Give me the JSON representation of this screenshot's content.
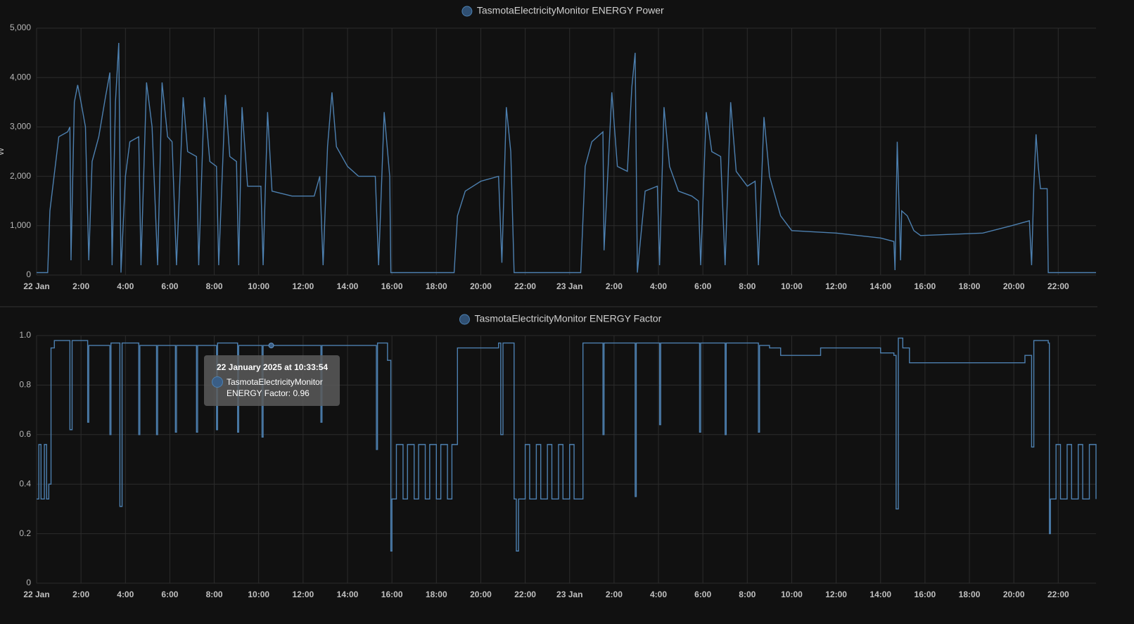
{
  "chart_data": [
    {
      "type": "line",
      "y_label": "W",
      "x": [
        0,
        0.5,
        0.6,
        1.0,
        1.4,
        1.5,
        1.55,
        1.7,
        1.85,
        2.0,
        2.2,
        2.35,
        2.5,
        2.8,
        3.1,
        3.3,
        3.4,
        3.55,
        3.7,
        3.8,
        4.0,
        4.2,
        4.6,
        4.7,
        4.95,
        5.2,
        5.45,
        5.65,
        5.9,
        6.1,
        6.3,
        6.6,
        6.8,
        7.2,
        7.3,
        7.55,
        7.8,
        8.1,
        8.2,
        8.5,
        8.7,
        9.0,
        9.1,
        9.25,
        9.5,
        10.1,
        10.2,
        10.4,
        10.6,
        11.5,
        12.5,
        12.75,
        12.9,
        13.1,
        13.3,
        13.5,
        14.0,
        14.5,
        15.25,
        15.4,
        15.65,
        15.9,
        15.95,
        18.8,
        18.95,
        19.3,
        20.0,
        20.8,
        20.95,
        21.15,
        21.35,
        21.5,
        24.5,
        24.7,
        25.0,
        25.5,
        25.55,
        25.9,
        26.15,
        26.6,
        26.8,
        26.95,
        27.05,
        27.4,
        27.95,
        28.05,
        28.25,
        28.5,
        28.9,
        29.5,
        29.8,
        29.9,
        30.15,
        30.4,
        30.8,
        31.0,
        31.25,
        31.5,
        32.0,
        32.35,
        32.5,
        32.75,
        33.0,
        33.5,
        34.0,
        36.0,
        38.0,
        38.6,
        38.65,
        38.75,
        38.9,
        38.95,
        39.2,
        39.5,
        39.8,
        42.6,
        43.9,
        44.7,
        44.8,
        44.9,
        45.0,
        45.1,
        45.2,
        45.5,
        45.55,
        47.7
      ],
      "series": [
        {
          "name": "TasmotaElectricityMonitor ENERGY Power",
          "color": "#4d80b0",
          "values": [
            50,
            50,
            1300,
            2800,
            2900,
            3000,
            300,
            3500,
            3850,
            3500,
            3000,
            300,
            2300,
            2800,
            3600,
            4100,
            200,
            3500,
            4700,
            50,
            2000,
            2700,
            2800,
            200,
            3900,
            3000,
            200,
            3900,
            2800,
            2700,
            200,
            3600,
            2500,
            2400,
            200,
            3600,
            2300,
            2200,
            200,
            3650,
            2400,
            2300,
            200,
            3400,
            1800,
            1800,
            200,
            3300,
            1700,
            1600,
            1600,
            2000,
            200,
            2600,
            3700,
            2600,
            2200,
            2000,
            2000,
            200,
            3300,
            2000,
            50,
            50,
            1200,
            1700,
            1900,
            2000,
            250,
            3400,
            2500,
            50,
            50,
            2200,
            2700,
            2900,
            500,
            3700,
            2200,
            2100,
            3800,
            4500,
            50,
            1700,
            1800,
            200,
            3400,
            2200,
            1700,
            1600,
            1500,
            200,
            3300,
            2500,
            2400,
            200,
            3500,
            2100,
            1800,
            1900,
            200,
            3200,
            2000,
            1200,
            900,
            850,
            750,
            680,
            100,
            2700,
            300,
            1300,
            1200,
            900,
            800,
            850,
            1000,
            1100,
            200,
            1800,
            2850,
            2200,
            1750,
            1750,
            50,
            50
          ]
        }
      ],
      "xlim": [
        0,
        47.7
      ],
      "xticks": [
        {
          "value": 0,
          "label": "22 Jan"
        },
        {
          "value": 2,
          "label": "2:00"
        },
        {
          "value": 4,
          "label": "4:00"
        },
        {
          "value": 6,
          "label": "6:00"
        },
        {
          "value": 8,
          "label": "8:00"
        },
        {
          "value": 10,
          "label": "10:00"
        },
        {
          "value": 12,
          "label": "12:00"
        },
        {
          "value": 14,
          "label": "14:00"
        },
        {
          "value": 16,
          "label": "16:00"
        },
        {
          "value": 18,
          "label": "18:00"
        },
        {
          "value": 20,
          "label": "20:00"
        },
        {
          "value": 22,
          "label": "22:00"
        },
        {
          "value": 24,
          "label": "23 Jan"
        },
        {
          "value": 26,
          "label": "2:00"
        },
        {
          "value": 28,
          "label": "4:00"
        },
        {
          "value": 30,
          "label": "6:00"
        },
        {
          "value": 32,
          "label": "8:00"
        },
        {
          "value": 34,
          "label": "10:00"
        },
        {
          "value": 36,
          "label": "12:00"
        },
        {
          "value": 38,
          "label": "14:00"
        },
        {
          "value": 40,
          "label": "16:00"
        },
        {
          "value": 42,
          "label": "18:00"
        },
        {
          "value": 44,
          "label": "20:00"
        },
        {
          "value": 46,
          "label": "22:00"
        }
      ],
      "ylim": [
        0,
        5000
      ],
      "yticks": [
        0,
        {
          "value": 1000,
          "label": "1,000"
        },
        {
          "value": 2000,
          "label": "2,000"
        },
        {
          "value": 3000,
          "label": "3,000"
        },
        {
          "value": 4000,
          "label": "4,000"
        },
        {
          "value": 5000,
          "label": "5,000"
        }
      ],
      "grid": true,
      "step": false
    },
    {
      "type": "line",
      "x": [
        0,
        0.1,
        0.2,
        0.35,
        0.45,
        0.55,
        0.65,
        0.8,
        1.5,
        1.6,
        2.3,
        2.35,
        3.3,
        3.35,
        3.75,
        3.85,
        4.6,
        4.65,
        5.4,
        5.45,
        6.25,
        6.3,
        7.2,
        7.25,
        8.1,
        8.15,
        9.05,
        9.1,
        10.15,
        10.2,
        12.8,
        12.85,
        15.3,
        15.35,
        15.8,
        15.95,
        16.0,
        16.2,
        16.5,
        16.7,
        17.0,
        17.2,
        17.5,
        17.7,
        18.0,
        18.2,
        18.5,
        18.7,
        18.95,
        20.8,
        20.9,
        21.0,
        21.5,
        21.6,
        21.7,
        22.0,
        22.2,
        22.5,
        22.7,
        23.0,
        23.2,
        23.5,
        23.7,
        24.0,
        24.2,
        24.6,
        25.5,
        25.55,
        26.95,
        27.0,
        28.05,
        28.1,
        29.85,
        29.9,
        31.0,
        31.05,
        32.5,
        32.55,
        33.0,
        33.5,
        35.0,
        35.3,
        38.0,
        38.6,
        38.7,
        38.8,
        39.0,
        39.3,
        43.5,
        44.5,
        44.8,
        44.9,
        45.55,
        45.6,
        45.65,
        45.9,
        46.1,
        46.4,
        46.6,
        46.9,
        47.1,
        47.4,
        47.7
      ],
      "series": [
        {
          "name": "TasmotaElectricityMonitor ENERGY Factor",
          "color": "#4d80b0",
          "values": [
            0.34,
            0.56,
            0.34,
            0.56,
            0.34,
            0.4,
            0.95,
            0.98,
            0.62,
            0.98,
            0.65,
            0.96,
            0.6,
            0.97,
            0.31,
            0.97,
            0.6,
            0.96,
            0.6,
            0.96,
            0.61,
            0.96,
            0.61,
            0.96,
            0.62,
            0.97,
            0.61,
            0.96,
            0.59,
            0.96,
            0.65,
            0.96,
            0.54,
            0.97,
            0.9,
            0.13,
            0.34,
            0.56,
            0.34,
            0.56,
            0.34,
            0.56,
            0.34,
            0.56,
            0.34,
            0.56,
            0.34,
            0.56,
            0.95,
            0.97,
            0.6,
            0.97,
            0.34,
            0.13,
            0.34,
            0.56,
            0.34,
            0.56,
            0.34,
            0.56,
            0.34,
            0.56,
            0.34,
            0.56,
            0.34,
            0.97,
            0.6,
            0.97,
            0.35,
            0.97,
            0.64,
            0.97,
            0.61,
            0.97,
            0.6,
            0.97,
            0.61,
            0.96,
            0.95,
            0.92,
            0.92,
            0.95,
            0.93,
            0.92,
            0.3,
            0.99,
            0.95,
            0.89,
            0.89,
            0.92,
            0.55,
            0.98,
            0.97,
            0.2,
            0.34,
            0.56,
            0.34,
            0.56,
            0.34,
            0.56,
            0.34,
            0.56,
            0.34
          ]
        }
      ],
      "xlim": [
        0,
        47.7
      ],
      "xticks": [
        {
          "value": 0,
          "label": "22 Jan"
        },
        {
          "value": 2,
          "label": "2:00"
        },
        {
          "value": 4,
          "label": "4:00"
        },
        {
          "value": 6,
          "label": "6:00"
        },
        {
          "value": 8,
          "label": "8:00"
        },
        {
          "value": 10,
          "label": "10:00"
        },
        {
          "value": 12,
          "label": "12:00"
        },
        {
          "value": 14,
          "label": "14:00"
        },
        {
          "value": 16,
          "label": "16:00"
        },
        {
          "value": 18,
          "label": "18:00"
        },
        {
          "value": 20,
          "label": "20:00"
        },
        {
          "value": 22,
          "label": "22:00"
        },
        {
          "value": 24,
          "label": "23 Jan"
        },
        {
          "value": 26,
          "label": "2:00"
        },
        {
          "value": 28,
          "label": "4:00"
        },
        {
          "value": 30,
          "label": "6:00"
        },
        {
          "value": 32,
          "label": "8:00"
        },
        {
          "value": 34,
          "label": "10:00"
        },
        {
          "value": 36,
          "label": "12:00"
        },
        {
          "value": 38,
          "label": "14:00"
        },
        {
          "value": 40,
          "label": "16:00"
        },
        {
          "value": 42,
          "label": "18:00"
        },
        {
          "value": 44,
          "label": "20:00"
        },
        {
          "value": 46,
          "label": "22:00"
        }
      ],
      "ylim": [
        0,
        1
      ],
      "yticks": [
        0,
        0.2,
        0.4,
        0.6,
        0.8,
        {
          "value": 1,
          "label": "1.0"
        }
      ],
      "grid": true,
      "step": true,
      "tooltip": {
        "title": "22 January 2025 at 10:33:54",
        "lines": [
          "TasmotaElectricityMonitor",
          "ENERGY Factor: 0.96"
        ],
        "x": 10.565,
        "value": 0.96
      }
    }
  ]
}
